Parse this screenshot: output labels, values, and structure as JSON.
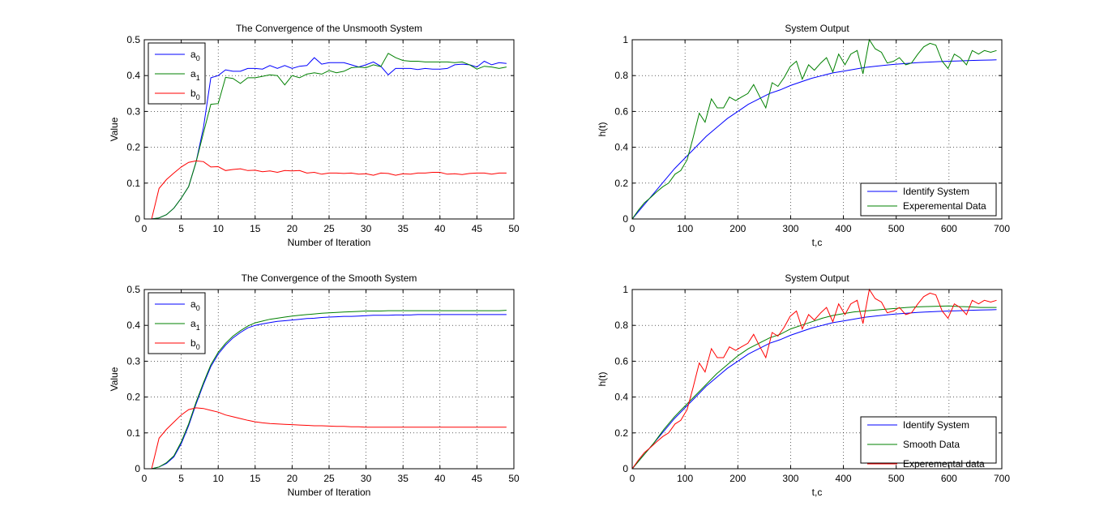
{
  "chart_data": [
    {
      "type": "line",
      "title": "The Convergence of the Unsmooth System",
      "xlabel": "Number of Iteration",
      "ylabel": "Value",
      "xlim": [
        0,
        50
      ],
      "ylim": [
        0,
        0.5
      ],
      "xticks": [
        "0",
        "5",
        "10",
        "15",
        "20",
        "25",
        "30",
        "35",
        "40",
        "45",
        "50"
      ],
      "yticks": [
        "0",
        "0.1",
        "0.2",
        "0.3",
        "0.4",
        "0.5"
      ],
      "grid": true,
      "legend_position": "top-left",
      "x": [
        1,
        2,
        3,
        4,
        5,
        6,
        7,
        8,
        9,
        10,
        11,
        12,
        13,
        14,
        15,
        16,
        17,
        18,
        19,
        20,
        21,
        22,
        23,
        24,
        25,
        26,
        27,
        28,
        29,
        30,
        31,
        32,
        33,
        34,
        35,
        36,
        37,
        38,
        39,
        40,
        41,
        42,
        43,
        44,
        45,
        46,
        47,
        48,
        49
      ],
      "series": [
        {
          "name": "a_0",
          "color": "#0000ff",
          "values": [
            0,
            0.003,
            0.012,
            0.03,
            0.058,
            0.09,
            0.158,
            0.255,
            0.394,
            0.4,
            0.416,
            0.412,
            0.412,
            0.42,
            0.42,
            0.418,
            0.428,
            0.42,
            0.428,
            0.42,
            0.426,
            0.428,
            0.45,
            0.432,
            0.436,
            0.436,
            0.436,
            0.43,
            0.424,
            0.43,
            0.438,
            0.426,
            0.402,
            0.42,
            0.42,
            0.42,
            0.417,
            0.42,
            0.418,
            0.418,
            0.42,
            0.43,
            0.432,
            0.43,
            0.424,
            0.44,
            0.43,
            0.436,
            0.434
          ]
        },
        {
          "name": "a_1",
          "color": "#008000",
          "values": [
            0,
            0.003,
            0.012,
            0.03,
            0.058,
            0.09,
            0.158,
            0.24,
            0.32,
            0.322,
            0.395,
            0.392,
            0.378,
            0.394,
            0.394,
            0.398,
            0.402,
            0.4,
            0.374,
            0.4,
            0.394,
            0.404,
            0.408,
            0.404,
            0.414,
            0.408,
            0.412,
            0.422,
            0.424,
            0.422,
            0.43,
            0.425,
            0.462,
            0.45,
            0.442,
            0.44,
            0.44,
            0.438,
            0.438,
            0.438,
            0.438,
            0.436,
            0.438,
            0.43,
            0.418,
            0.426,
            0.424,
            0.42,
            0.424
          ]
        },
        {
          "name": "b_0",
          "color": "#ff0000",
          "values": [
            0,
            0.085,
            0.11,
            0.128,
            0.145,
            0.158,
            0.162,
            0.16,
            0.145,
            0.146,
            0.135,
            0.138,
            0.14,
            0.135,
            0.136,
            0.132,
            0.134,
            0.13,
            0.135,
            0.134,
            0.135,
            0.128,
            0.13,
            0.125,
            0.128,
            0.128,
            0.127,
            0.128,
            0.125,
            0.126,
            0.122,
            0.128,
            0.127,
            0.122,
            0.126,
            0.125,
            0.128,
            0.128,
            0.13,
            0.13,
            0.125,
            0.126,
            0.124,
            0.127,
            0.128,
            0.128,
            0.125,
            0.128,
            0.128
          ]
        }
      ]
    },
    {
      "type": "line",
      "title": "System Output",
      "xlabel": "t,c",
      "ylabel": "h(t)",
      "xlim": [
        0,
        700
      ],
      "ylim": [
        0,
        1
      ],
      "xticks": [
        "0",
        "100",
        "200",
        "300",
        "400",
        "500",
        "600",
        "700"
      ],
      "yticks": [
        "0",
        "0.2",
        "0.4",
        "0.6",
        "0.8",
        "1"
      ],
      "grid": true,
      "legend_position": "bottom-right",
      "series": [
        {
          "name": "Identify System",
          "color": "#0000ff",
          "x": [
            0,
            20,
            40,
            60,
            80,
            100,
            120,
            140,
            160,
            180,
            200,
            220,
            240,
            260,
            280,
            300,
            320,
            340,
            360,
            380,
            400,
            420,
            440,
            460,
            480,
            500,
            520,
            540,
            560,
            580,
            600,
            620,
            640,
            660,
            680,
            690
          ],
          "values": [
            0,
            0.07,
            0.14,
            0.21,
            0.28,
            0.34,
            0.4,
            0.46,
            0.51,
            0.56,
            0.6,
            0.64,
            0.67,
            0.7,
            0.72,
            0.745,
            0.765,
            0.785,
            0.8,
            0.815,
            0.825,
            0.835,
            0.845,
            0.852,
            0.858,
            0.864,
            0.868,
            0.872,
            0.875,
            0.878,
            0.88,
            0.882,
            0.884,
            0.886,
            0.887,
            0.888
          ]
        },
        {
          "name": "Experemental Data",
          "color": "#008000",
          "x": [
            0,
            12,
            23,
            35,
            46,
            58,
            69,
            81,
            92,
            104,
            115,
            127,
            138,
            150,
            161,
            173,
            184,
            196,
            207,
            219,
            230,
            242,
            253,
            265,
            276,
            288,
            299,
            311,
            322,
            334,
            345,
            357,
            368,
            380,
            391,
            403,
            414,
            426,
            437,
            449,
            460,
            472,
            483,
            495,
            506,
            518,
            529,
            541,
            552,
            564,
            575,
            587,
            598,
            610,
            621,
            633,
            644,
            656,
            667,
            679,
            690
          ],
          "values": [
            0,
            0.05,
            0.09,
            0.12,
            0.15,
            0.18,
            0.2,
            0.25,
            0.27,
            0.33,
            0.45,
            0.59,
            0.54,
            0.67,
            0.62,
            0.62,
            0.68,
            0.66,
            0.68,
            0.7,
            0.75,
            0.68,
            0.62,
            0.76,
            0.74,
            0.79,
            0.85,
            0.88,
            0.78,
            0.86,
            0.83,
            0.87,
            0.9,
            0.82,
            0.92,
            0.86,
            0.92,
            0.94,
            0.81,
            1.0,
            0.95,
            0.93,
            0.87,
            0.88,
            0.9,
            0.86,
            0.87,
            0.92,
            0.96,
            0.98,
            0.97,
            0.88,
            0.84,
            0.92,
            0.9,
            0.86,
            0.94,
            0.92,
            0.94,
            0.93,
            0.94
          ]
        }
      ]
    },
    {
      "type": "line",
      "title": "The Convergence of the Smooth System",
      "xlabel": "Number of Iteration",
      "ylabel": "Value",
      "xlim": [
        0,
        50
      ],
      "ylim": [
        0,
        0.5
      ],
      "xticks": [
        "0",
        "5",
        "10",
        "15",
        "20",
        "25",
        "30",
        "35",
        "40",
        "45",
        "50"
      ],
      "yticks": [
        "0",
        "0.1",
        "0.2",
        "0.3",
        "0.4",
        "0.5"
      ],
      "grid": true,
      "legend_position": "top-left",
      "x": [
        1,
        2,
        3,
        4,
        5,
        6,
        7,
        8,
        9,
        10,
        11,
        12,
        13,
        14,
        15,
        16,
        17,
        18,
        19,
        20,
        21,
        22,
        23,
        24,
        25,
        26,
        27,
        28,
        29,
        30,
        31,
        32,
        33,
        34,
        35,
        36,
        37,
        38,
        39,
        40,
        41,
        42,
        43,
        44,
        45,
        46,
        47,
        48,
        49
      ],
      "series": [
        {
          "name": "a_0",
          "color": "#0000ff",
          "values": [
            0,
            0.005,
            0.015,
            0.033,
            0.07,
            0.12,
            0.18,
            0.235,
            0.285,
            0.32,
            0.345,
            0.365,
            0.38,
            0.393,
            0.4,
            0.404,
            0.408,
            0.411,
            0.413,
            0.415,
            0.417,
            0.419,
            0.42,
            0.422,
            0.423,
            0.424,
            0.425,
            0.425,
            0.426,
            0.427,
            0.428,
            0.428,
            0.428,
            0.429,
            0.429,
            0.429,
            0.43,
            0.43,
            0.43,
            0.43,
            0.43,
            0.43,
            0.43,
            0.43,
            0.43,
            0.43,
            0.43,
            0.43,
            0.43
          ]
        },
        {
          "name": "a_1",
          "color": "#008000",
          "values": [
            0,
            0.005,
            0.017,
            0.036,
            0.075,
            0.125,
            0.185,
            0.24,
            0.29,
            0.325,
            0.35,
            0.37,
            0.385,
            0.398,
            0.407,
            0.412,
            0.417,
            0.42,
            0.423,
            0.426,
            0.428,
            0.43,
            0.432,
            0.434,
            0.435,
            0.436,
            0.437,
            0.438,
            0.439,
            0.44,
            0.44,
            0.44,
            0.441,
            0.441,
            0.441,
            0.441,
            0.441,
            0.441,
            0.441,
            0.441,
            0.441,
            0.441,
            0.441,
            0.441,
            0.441,
            0.441,
            0.441,
            0.441,
            0.442
          ]
        },
        {
          "name": "b_0",
          "color": "#ff0000",
          "values": [
            0,
            0.085,
            0.11,
            0.13,
            0.15,
            0.165,
            0.17,
            0.168,
            0.163,
            0.158,
            0.15,
            0.145,
            0.14,
            0.135,
            0.131,
            0.128,
            0.126,
            0.125,
            0.124,
            0.123,
            0.122,
            0.121,
            0.12,
            0.12,
            0.119,
            0.118,
            0.118,
            0.117,
            0.117,
            0.116,
            0.116,
            0.116,
            0.116,
            0.116,
            0.116,
            0.116,
            0.116,
            0.116,
            0.116,
            0.116,
            0.116,
            0.116,
            0.116,
            0.116,
            0.116,
            0.116,
            0.116,
            0.116,
            0.116
          ]
        }
      ]
    },
    {
      "type": "line",
      "title": "System Output",
      "xlabel": "t,c",
      "ylabel": "h(t)",
      "xlim": [
        0,
        700
      ],
      "ylim": [
        0,
        1
      ],
      "xticks": [
        "0",
        "100",
        "200",
        "300",
        "400",
        "500",
        "600",
        "700"
      ],
      "yticks": [
        "0",
        "0.2",
        "0.4",
        "0.6",
        "0.8",
        "1"
      ],
      "grid": true,
      "legend_position": "bottom-right",
      "series": [
        {
          "name": "Identify System",
          "color": "#0000ff",
          "x": [
            0,
            20,
            40,
            60,
            80,
            100,
            120,
            140,
            160,
            180,
            200,
            220,
            240,
            260,
            280,
            300,
            320,
            340,
            360,
            380,
            400,
            420,
            440,
            460,
            480,
            500,
            520,
            540,
            560,
            580,
            600,
            620,
            640,
            660,
            680,
            690
          ],
          "values": [
            0,
            0.07,
            0.14,
            0.21,
            0.28,
            0.34,
            0.4,
            0.46,
            0.51,
            0.56,
            0.6,
            0.64,
            0.67,
            0.7,
            0.72,
            0.745,
            0.765,
            0.785,
            0.8,
            0.815,
            0.825,
            0.835,
            0.845,
            0.852,
            0.858,
            0.864,
            0.868,
            0.872,
            0.875,
            0.878,
            0.88,
            0.882,
            0.884,
            0.886,
            0.887,
            0.888
          ]
        },
        {
          "name": "Smooth Data",
          "color": "#008000",
          "x": [
            0,
            20,
            40,
            60,
            80,
            100,
            120,
            140,
            160,
            180,
            200,
            220,
            240,
            260,
            280,
            300,
            320,
            340,
            360,
            380,
            400,
            420,
            440,
            460,
            480,
            500,
            520,
            540,
            560,
            580,
            600,
            620,
            640,
            660,
            680,
            690
          ],
          "values": [
            0,
            0.07,
            0.14,
            0.22,
            0.29,
            0.35,
            0.41,
            0.47,
            0.53,
            0.58,
            0.63,
            0.67,
            0.7,
            0.73,
            0.75,
            0.78,
            0.8,
            0.82,
            0.84,
            0.855,
            0.865,
            0.875,
            0.88,
            0.885,
            0.89,
            0.895,
            0.9,
            0.903,
            0.905,
            0.907,
            0.908,
            0.905,
            0.903,
            0.9,
            0.9,
            0.9
          ]
        },
        {
          "name": "Experemental data",
          "color": "#ff0000",
          "x": [
            0,
            12,
            23,
            35,
            46,
            58,
            69,
            81,
            92,
            104,
            115,
            127,
            138,
            150,
            161,
            173,
            184,
            196,
            207,
            219,
            230,
            242,
            253,
            265,
            276,
            288,
            299,
            311,
            322,
            334,
            345,
            357,
            368,
            380,
            391,
            403,
            414,
            426,
            437,
            449,
            460,
            472,
            483,
            495,
            506,
            518,
            529,
            541,
            552,
            564,
            575,
            587,
            598,
            610,
            621,
            633,
            644,
            656,
            667,
            679,
            690
          ],
          "values": [
            0,
            0.05,
            0.09,
            0.12,
            0.15,
            0.18,
            0.2,
            0.25,
            0.27,
            0.33,
            0.45,
            0.59,
            0.54,
            0.67,
            0.62,
            0.62,
            0.68,
            0.66,
            0.68,
            0.7,
            0.75,
            0.68,
            0.62,
            0.76,
            0.74,
            0.79,
            0.85,
            0.88,
            0.78,
            0.86,
            0.83,
            0.87,
            0.9,
            0.82,
            0.92,
            0.86,
            0.92,
            0.94,
            0.81,
            1.0,
            0.95,
            0.93,
            0.87,
            0.88,
            0.9,
            0.86,
            0.87,
            0.92,
            0.96,
            0.98,
            0.97,
            0.88,
            0.84,
            0.92,
            0.9,
            0.86,
            0.94,
            0.92,
            0.94,
            0.93,
            0.94
          ]
        }
      ]
    }
  ]
}
